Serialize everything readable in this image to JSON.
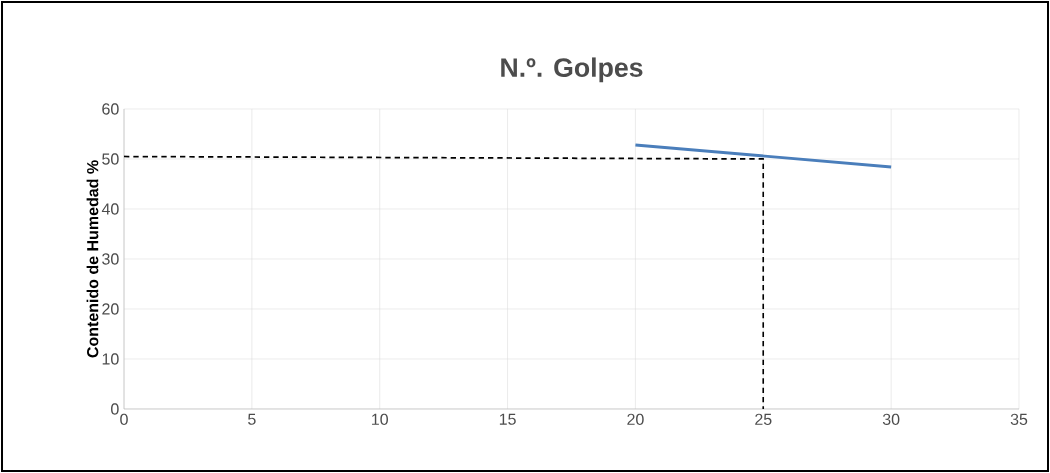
{
  "chart_data": {
    "type": "line",
    "title": "N.º. Golpes",
    "ylabel": "Contenido de Humedad %",
    "xlim": [
      0,
      35
    ],
    "ylim": [
      0,
      60
    ],
    "xticks": [
      0,
      5,
      10,
      15,
      20,
      25,
      30,
      35
    ],
    "yticks": [
      0,
      10,
      20,
      30,
      40,
      50,
      60
    ],
    "grid": true,
    "marker": "none",
    "series": [
      {
        "color": "#4a7ebb",
        "x": [
          20,
          25,
          30
        ],
        "values": [
          52.8,
          50.6,
          48.4
        ],
        "line_style": "solid"
      },
      {
        "color": "#000000",
        "x": [
          0,
          25,
          25
        ],
        "values": [
          50.5,
          50,
          0
        ],
        "line_style": "dashed"
      }
    ]
  }
}
